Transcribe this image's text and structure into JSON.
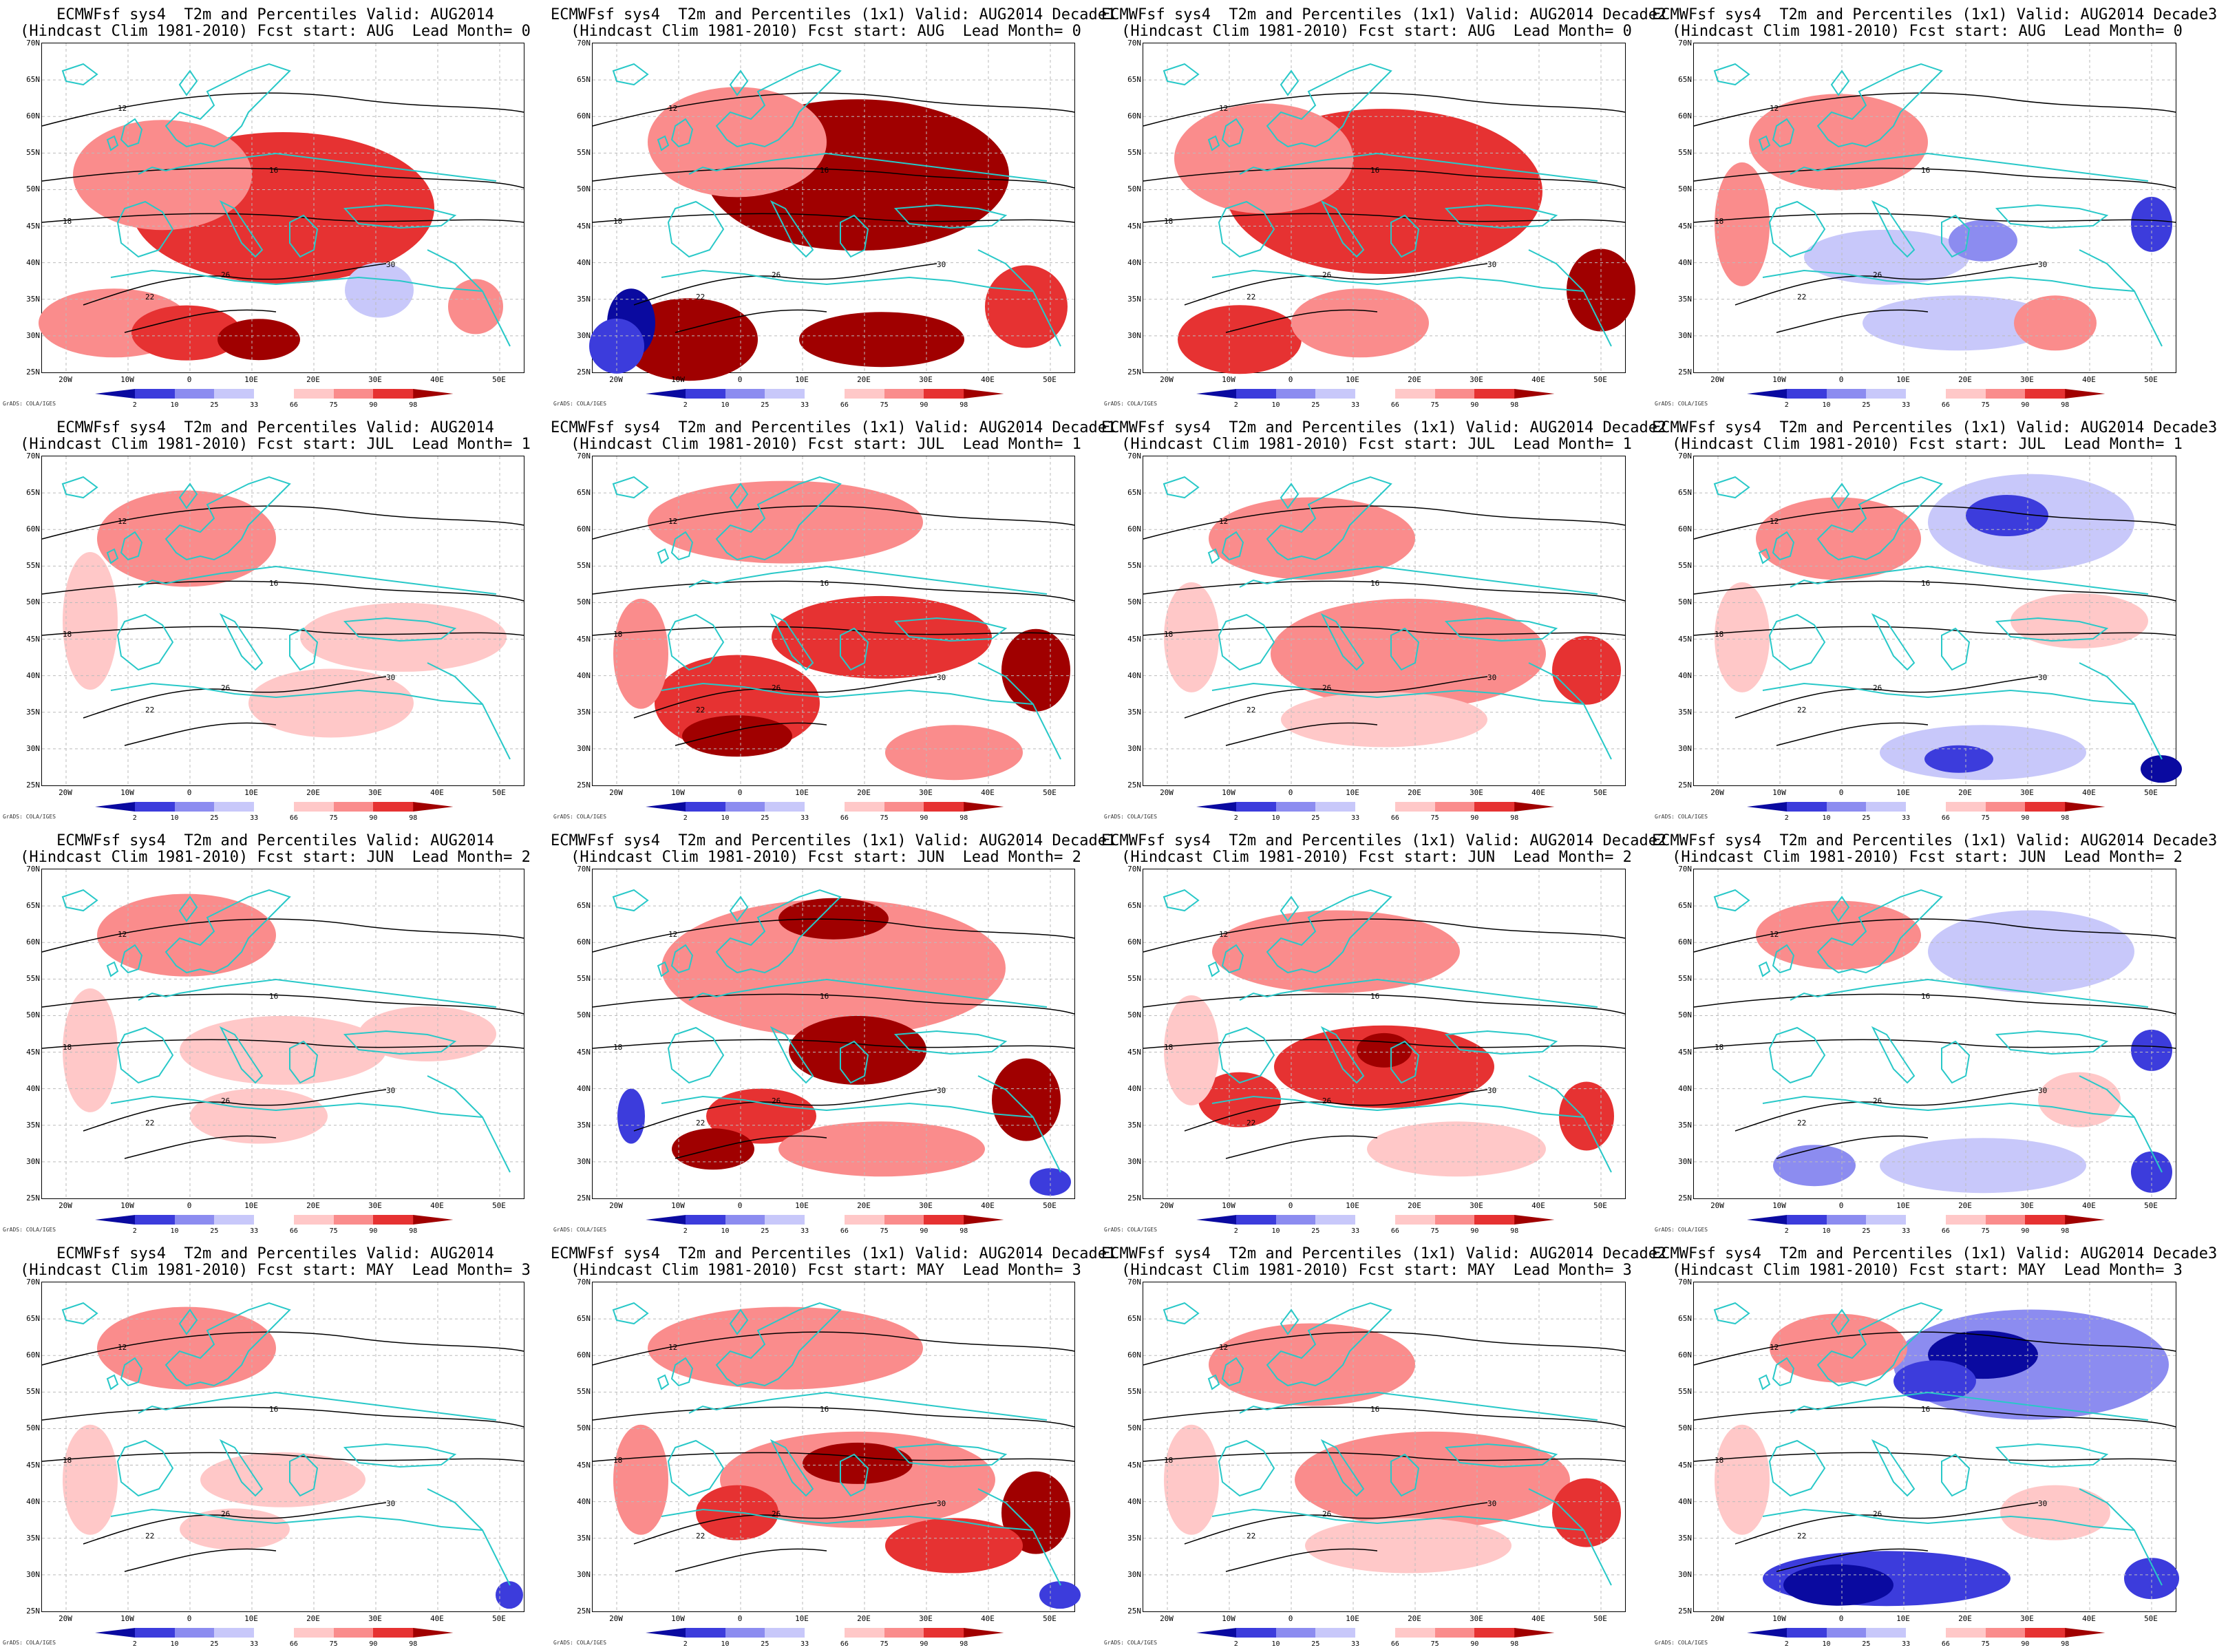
{
  "figure": {
    "rows": [
      {
        "fcst_start": "AUG",
        "lead": "0"
      },
      {
        "fcst_start": "JUL",
        "lead": "1"
      },
      {
        "fcst_start": "JUN",
        "lead": "2"
      },
      {
        "fcst_start": "MAY",
        "lead": "3"
      }
    ],
    "panels": [
      {
        "title1": "ECMWFsf sys4  T2m and Percentiles Valid: AUG2014",
        "title2": "(Hindcast Clim 1981-2010) Fcst start: AUG  Lead Month= 0"
      },
      {
        "title1": "ECMWFsf sys4  T2m and Percentiles (1x1) Valid: AUG2014 Decade1",
        "title2": "(Hindcast Clim 1981-2010) Fcst start: AUG  Lead Month= 0"
      },
      {
        "title1": "ECMWFsf sys4  T2m and Percentiles (1x1) Valid: AUG2014 Decade2",
        "title2": "(Hindcast Clim 1981-2010) Fcst start: AUG  Lead Month= 0"
      },
      {
        "title1": "ECMWFsf sys4  T2m and Percentiles (1x1) Valid: AUG2014 Decade3",
        "title2": "(Hindcast Clim 1981-2010) Fcst start: AUG  Lead Month= 0"
      },
      {
        "title1": "ECMWFsf sys4  T2m and Percentiles Valid: AUG2014",
        "title2": "(Hindcast Clim 1981-2010) Fcst start: JUL  Lead Month= 1"
      },
      {
        "title1": "ECMWFsf sys4  T2m and Percentiles (1x1) Valid: AUG2014 Decade1",
        "title2": "(Hindcast Clim 1981-2010) Fcst start: JUL  Lead Month= 1"
      },
      {
        "title1": "ECMWFsf sys4  T2m and Percentiles (1x1) Valid: AUG2014 Decade2",
        "title2": "(Hindcast Clim 1981-2010) Fcst start: JUL  Lead Month= 1"
      },
      {
        "title1": "ECMWFsf sys4  T2m and Percentiles (1x1) Valid: AUG2014 Decade3",
        "title2": "(Hindcast Clim 1981-2010) Fcst start: JUL  Lead Month= 1"
      },
      {
        "title1": "ECMWFsf sys4  T2m and Percentiles Valid: AUG2014",
        "title2": "(Hindcast Clim 1981-2010) Fcst start: JUN  Lead Month= 2"
      },
      {
        "title1": "ECMWFsf sys4  T2m and Percentiles (1x1) Valid: AUG2014 Decade1",
        "title2": "(Hindcast Clim 1981-2010) Fcst start: JUN  Lead Month= 2"
      },
      {
        "title1": "ECMWFsf sys4  T2m and Percentiles (1x1) Valid: AUG2014 Decade2",
        "title2": "(Hindcast Clim 1981-2010) Fcst start: JUN  Lead Month= 2"
      },
      {
        "title1": "ECMWFsf sys4  T2m and Percentiles (1x1) Valid: AUG2014 Decade3",
        "title2": "(Hindcast Clim 1981-2010) Fcst start: JUN  Lead Month= 2"
      },
      {
        "title1": "ECMWFsf sys4  T2m and Percentiles Valid: AUG2014",
        "title2": "(Hindcast Clim 1981-2010) Fcst start: MAY  Lead Month= 3"
      },
      {
        "title1": "ECMWFsf sys4  T2m and Percentiles (1x1) Valid: AUG2014 Decade1",
        "title2": "(Hindcast Clim 1981-2010) Fcst start: MAY  Lead Month= 3"
      },
      {
        "title1": "ECMWFsf sys4  T2m and Percentiles (1x1) Valid: AUG2014 Decade2",
        "title2": "(Hindcast Clim 1981-2010) Fcst start: MAY  Lead Month= 3"
      },
      {
        "title1": "ECMWFsf sys4  T2m and Percentiles (1x1) Valid: AUG2014 Decade3",
        "title2": "(Hindcast Clim 1981-2010) Fcst start: MAY  Lead Month= 3"
      }
    ],
    "lat_labels": [
      "70N",
      "65N",
      "60N",
      "55N",
      "50N",
      "45N",
      "40N",
      "35N",
      "30N",
      "25N"
    ],
    "lon_labels": [
      "20W",
      "10W",
      "0",
      "10E",
      "20E",
      "30E",
      "40E",
      "50E"
    ],
    "legend": {
      "ticks": [
        "2",
        "10",
        "25",
        "33",
        "66",
        "75",
        "90",
        "98"
      ],
      "colors": [
        "#0a0aa0",
        "#3c3cdc",
        "#8c8cf0",
        "#c8c8fa",
        "#ffffff",
        "#ffc8c8",
        "#fa8c8c",
        "#e63232",
        "#a00000"
      ]
    },
    "credit": "GrADS: COLA/IGES",
    "colors": {
      "coast": "#28c8c8",
      "contour": "#000000"
    },
    "contour_labels": [
      "12",
      "16",
      "18",
      "22",
      "26",
      "30"
    ]
  },
  "cells": [
    {
      "blobs": [
        [
          55,
          45,
          140,
          70,
          "#a00000"
        ],
        [
          50,
          50,
          220,
          110,
          "#e63232"
        ],
        [
          25,
          40,
          130,
          80,
          "#fa8c8c"
        ],
        [
          15,
          85,
          110,
          50,
          "#fa8c8c"
        ],
        [
          30,
          88,
          80,
          40,
          "#e63232"
        ],
        [
          45,
          90,
          60,
          30,
          "#a00000"
        ],
        [
          90,
          80,
          40,
          40,
          "#fa8c8c"
        ],
        [
          70,
          75,
          50,
          40,
          "#c8c8fa"
        ]
      ]
    },
    {
      "blobs": [
        [
          55,
          40,
          220,
          110,
          "#a00000"
        ],
        [
          30,
          30,
          130,
          80,
          "#fa8c8c"
        ],
        [
          20,
          90,
          100,
          60,
          "#a00000"
        ],
        [
          8,
          85,
          35,
          50,
          "#0a0aa0"
        ],
        [
          5,
          92,
          40,
          40,
          "#3c3cdc"
        ],
        [
          90,
          80,
          60,
          60,
          "#e63232"
        ],
        [
          60,
          90,
          120,
          40,
          "#a00000"
        ]
      ]
    },
    {
      "blobs": [
        [
          55,
          45,
          140,
          80,
          "#a00000"
        ],
        [
          50,
          45,
          230,
          120,
          "#e63232"
        ],
        [
          25,
          35,
          130,
          80,
          "#fa8c8c"
        ],
        [
          20,
          90,
          90,
          50,
          "#e63232"
        ],
        [
          95,
          75,
          50,
          60,
          "#a00000"
        ],
        [
          45,
          85,
          100,
          50,
          "#fa8c8c"
        ]
      ]
    },
    {
      "blobs": [
        [
          30,
          30,
          130,
          70,
          "#fa8c8c"
        ],
        [
          10,
          55,
          40,
          90,
          "#fa8c8c"
        ],
        [
          55,
          85,
          140,
          40,
          "#c8c8fa"
        ],
        [
          40,
          65,
          120,
          40,
          "#c8c8fa"
        ],
        [
          95,
          55,
          30,
          40,
          "#3c3cdc"
        ],
        [
          75,
          85,
          60,
          40,
          "#fa8c8c"
        ],
        [
          60,
          60,
          50,
          30,
          "#8c8cf0"
        ]
      ]
    },
    {
      "blobs": [
        [
          30,
          25,
          130,
          70,
          "#fa8c8c"
        ],
        [
          10,
          50,
          40,
          100,
          "#ffc8c8"
        ],
        [
          75,
          55,
          150,
          50,
          "#ffc8c8"
        ],
        [
          60,
          75,
          120,
          50,
          "#ffc8c8"
        ]
      ]
    },
    {
      "blobs": [
        [
          40,
          20,
          200,
          60,
          "#fa8c8c"
        ],
        [
          30,
          75,
          120,
          70,
          "#e63232"
        ],
        [
          60,
          55,
          160,
          60,
          "#e63232"
        ],
        [
          92,
          65,
          50,
          60,
          "#a00000"
        ],
        [
          30,
          85,
          80,
          30,
          "#a00000"
        ],
        [
          10,
          60,
          40,
          80,
          "#fa8c8c"
        ],
        [
          75,
          90,
          100,
          40,
          "#fa8c8c"
        ]
      ]
    },
    {
      "blobs": [
        [
          35,
          25,
          150,
          60,
          "#fa8c8c"
        ],
        [
          55,
          60,
          200,
          80,
          "#fa8c8c"
        ],
        [
          92,
          65,
          50,
          50,
          "#e63232"
        ],
        [
          10,
          55,
          40,
          80,
          "#ffc8c8"
        ],
        [
          50,
          80,
          150,
          40,
          "#ffc8c8"
        ]
      ]
    },
    {
      "blobs": [
        [
          30,
          25,
          120,
          60,
          "#fa8c8c"
        ],
        [
          70,
          20,
          150,
          70,
          "#c8c8fa"
        ],
        [
          65,
          18,
          60,
          30,
          "#3c3cdc"
        ],
        [
          60,
          90,
          150,
          40,
          "#c8c8fa"
        ],
        [
          55,
          92,
          50,
          20,
          "#3c3cdc"
        ],
        [
          97,
          95,
          30,
          20,
          "#0a0aa0"
        ],
        [
          10,
          55,
          40,
          80,
          "#ffc8c8"
        ],
        [
          80,
          50,
          100,
          40,
          "#ffc8c8"
        ]
      ]
    },
    {
      "blobs": [
        [
          30,
          20,
          130,
          60,
          "#fa8c8c"
        ],
        [
          10,
          55,
          40,
          90,
          "#ffc8c8"
        ],
        [
          50,
          55,
          150,
          50,
          "#ffc8c8"
        ],
        [
          45,
          75,
          100,
          40,
          "#ffc8c8"
        ],
        [
          80,
          50,
          100,
          40,
          "#ffc8c8"
        ]
      ]
    },
    {
      "blobs": [
        [
          50,
          30,
          250,
          100,
          "#fa8c8c"
        ],
        [
          55,
          55,
          100,
          50,
          "#a00000"
        ],
        [
          35,
          75,
          80,
          40,
          "#e63232"
        ],
        [
          25,
          85,
          60,
          30,
          "#a00000"
        ],
        [
          90,
          70,
          50,
          60,
          "#a00000"
        ],
        [
          50,
          15,
          80,
          30,
          "#a00000"
        ],
        [
          8,
          75,
          20,
          40,
          "#3c3cdc"
        ],
        [
          60,
          85,
          150,
          40,
          "#fa8c8c"
        ],
        [
          95,
          95,
          30,
          20,
          "#3c3cdc"
        ]
      ]
    },
    {
      "blobs": [
        [
          40,
          25,
          180,
          60,
          "#fa8c8c"
        ],
        [
          50,
          60,
          160,
          60,
          "#e63232"
        ],
        [
          50,
          55,
          40,
          25,
          "#a00000"
        ],
        [
          92,
          75,
          40,
          50,
          "#e63232"
        ],
        [
          20,
          70,
          60,
          40,
          "#e63232"
        ],
        [
          10,
          55,
          40,
          80,
          "#ffc8c8"
        ],
        [
          65,
          85,
          130,
          40,
          "#ffc8c8"
        ]
      ]
    },
    {
      "blobs": [
        [
          30,
          20,
          120,
          50,
          "#fa8c8c"
        ],
        [
          70,
          25,
          150,
          60,
          "#c8c8fa"
        ],
        [
          60,
          90,
          150,
          40,
          "#c8c8fa"
        ],
        [
          25,
          90,
          60,
          30,
          "#8c8cf0"
        ],
        [
          95,
          92,
          30,
          30,
          "#3c3cdc"
        ],
        [
          95,
          55,
          30,
          30,
          "#3c3cdc"
        ],
        [
          80,
          70,
          60,
          40,
          "#ffc8c8"
        ]
      ]
    },
    {
      "blobs": [
        [
          30,
          20,
          130,
          60,
          "#fa8c8c"
        ],
        [
          10,
          60,
          40,
          80,
          "#ffc8c8"
        ],
        [
          50,
          60,
          120,
          40,
          "#ffc8c8"
        ],
        [
          40,
          75,
          80,
          30,
          "#ffc8c8"
        ],
        [
          97,
          95,
          20,
          20,
          "#3c3cdc"
        ]
      ]
    },
    {
      "blobs": [
        [
          40,
          20,
          200,
          60,
          "#fa8c8c"
        ],
        [
          55,
          60,
          200,
          70,
          "#fa8c8c"
        ],
        [
          55,
          55,
          80,
          30,
          "#a00000"
        ],
        [
          30,
          70,
          60,
          40,
          "#e63232"
        ],
        [
          92,
          70,
          50,
          60,
          "#a00000"
        ],
        [
          75,
          80,
          100,
          40,
          "#e63232"
        ],
        [
          10,
          60,
          40,
          80,
          "#fa8c8c"
        ],
        [
          97,
          95,
          30,
          20,
          "#3c3cdc"
        ]
      ]
    },
    {
      "blobs": [
        [
          35,
          25,
          150,
          60,
          "#fa8c8c"
        ],
        [
          60,
          60,
          200,
          70,
          "#fa8c8c"
        ],
        [
          92,
          70,
          50,
          50,
          "#e63232"
        ],
        [
          10,
          60,
          40,
          80,
          "#ffc8c8"
        ],
        [
          55,
          80,
          150,
          40,
          "#ffc8c8"
        ]
      ]
    },
    {
      "blobs": [
        [
          70,
          25,
          200,
          80,
          "#8c8cf0"
        ],
        [
          60,
          22,
          80,
          35,
          "#0a0aa0"
        ],
        [
          50,
          30,
          60,
          30,
          "#3c3cdc"
        ],
        [
          30,
          20,
          100,
          50,
          "#fa8c8c"
        ],
        [
          40,
          90,
          180,
          40,
          "#3c3cdc"
        ],
        [
          30,
          92,
          80,
          30,
          "#0a0aa0"
        ],
        [
          95,
          90,
          40,
          30,
          "#3c3cdc"
        ],
        [
          10,
          60,
          40,
          80,
          "#ffc8c8"
        ],
        [
          75,
          70,
          80,
          40,
          "#ffc8c8"
        ]
      ]
    }
  ]
}
